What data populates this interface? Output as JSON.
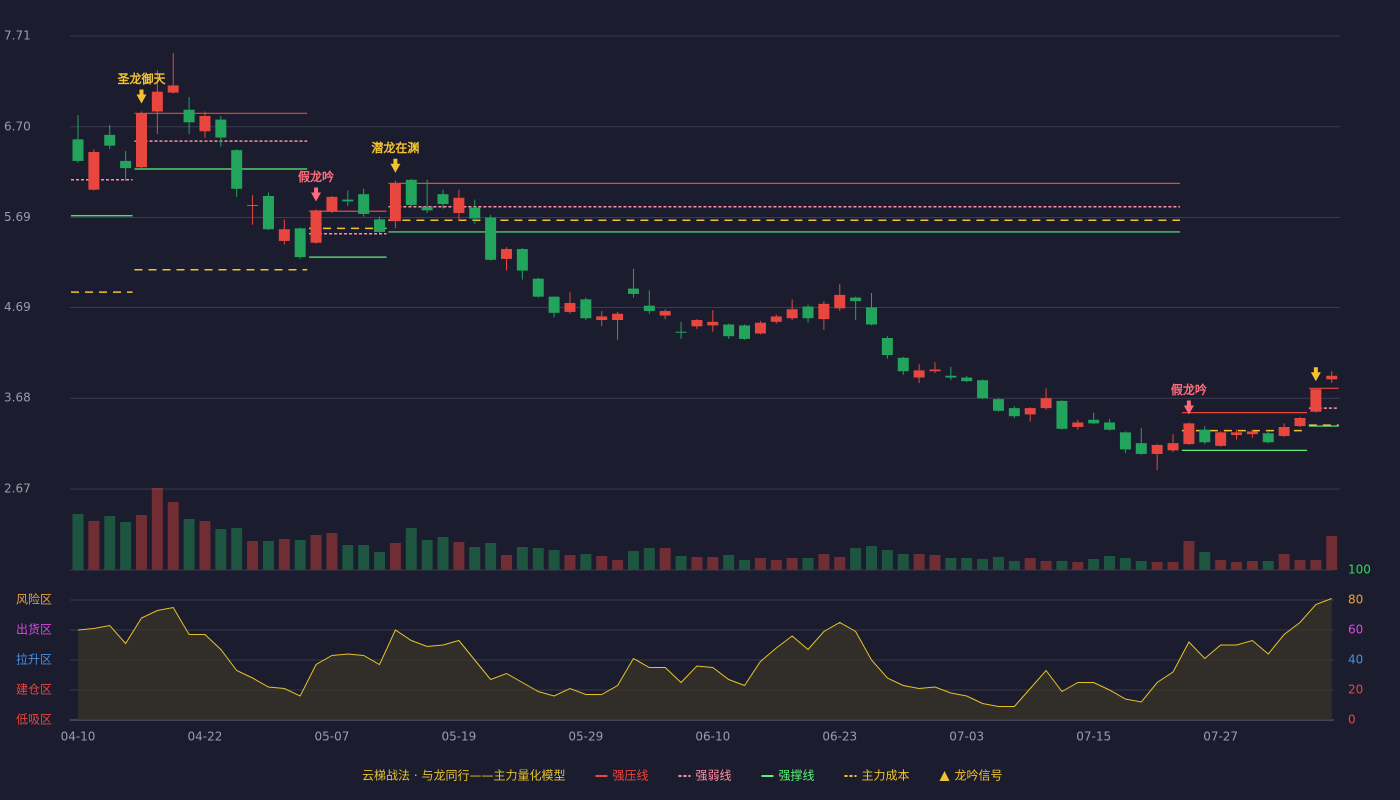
{
  "chart_data": {
    "type": "candlestick",
    "categories": [
      "04-10",
      null,
      null,
      null,
      null,
      null,
      null,
      null,
      "04-22",
      null,
      null,
      null,
      null,
      null,
      null,
      null,
      "05-07",
      null,
      null,
      null,
      null,
      null,
      null,
      null,
      "05-19",
      null,
      null,
      null,
      null,
      null,
      null,
      null,
      "05-29",
      null,
      null,
      null,
      null,
      null,
      null,
      null,
      "06-10",
      null,
      null,
      null,
      null,
      null,
      null,
      null,
      "06-23",
      null,
      null,
      null,
      null,
      null,
      null,
      null,
      "07-03",
      null,
      null,
      null,
      null,
      null,
      null,
      null,
      "07-15",
      null,
      null,
      null,
      null,
      null,
      null,
      null,
      "07-27",
      null,
      null,
      null,
      null,
      null,
      null,
      null
    ],
    "open": [
      6.56,
      6.0,
      6.61,
      6.32,
      6.25,
      6.87,
      7.08,
      6.89,
      6.65,
      6.78,
      6.44,
      5.82,
      5.93,
      5.43,
      5.57,
      5.41,
      5.76,
      5.89,
      5.95,
      5.67,
      5.65,
      6.11,
      5.81,
      5.95,
      5.74,
      5.8,
      5.69,
      5.23,
      5.34,
      5.01,
      4.81,
      4.64,
      4.78,
      4.55,
      4.55,
      4.9,
      4.71,
      4.6,
      4.42,
      4.48,
      4.49,
      4.5,
      4.49,
      4.4,
      4.53,
      4.57,
      4.7,
      4.56,
      4.68,
      4.8,
      4.69,
      4.35,
      4.13,
      3.91,
      3.98,
      3.93,
      3.91,
      3.88,
      3.67,
      3.57,
      3.5,
      3.57,
      3.65,
      3.36,
      3.44,
      3.41,
      3.3,
      3.18,
      3.06,
      3.1,
      3.17,
      3.33,
      3.15,
      3.27,
      3.28,
      3.29,
      3.26,
      3.37,
      3.53,
      3.89
    ],
    "close": [
      6.32,
      6.42,
      6.49,
      6.24,
      6.85,
      7.09,
      7.16,
      6.75,
      6.82,
      6.58,
      6.01,
      5.83,
      5.56,
      5.56,
      5.25,
      5.77,
      5.92,
      5.87,
      5.73,
      5.53,
      6.07,
      5.83,
      5.77,
      5.84,
      5.91,
      5.68,
      5.22,
      5.34,
      5.1,
      4.81,
      4.63,
      4.74,
      4.57,
      4.59,
      4.62,
      4.84,
      4.65,
      4.65,
      4.41,
      4.55,
      4.53,
      4.37,
      4.34,
      4.52,
      4.59,
      4.67,
      4.57,
      4.73,
      4.83,
      4.76,
      4.5,
      4.16,
      3.98,
      3.99,
      4.0,
      3.91,
      3.87,
      3.68,
      3.54,
      3.48,
      3.57,
      3.68,
      3.34,
      3.41,
      3.4,
      3.33,
      3.11,
      3.06,
      3.16,
      3.18,
      3.4,
      3.19,
      3.3,
      3.3,
      3.31,
      3.19,
      3.36,
      3.46,
      3.78,
      3.93
    ],
    "high": [
      6.83,
      6.45,
      6.72,
      6.43,
      6.87,
      7.33,
      7.52,
      7.03,
      6.87,
      6.82,
      6.45,
      5.94,
      5.97,
      5.67,
      5.58,
      5.78,
      5.93,
      5.99,
      6.01,
      5.7,
      6.1,
      6.12,
      6.11,
      6.0,
      6.0,
      5.89,
      5.72,
      5.36,
      5.35,
      5.02,
      4.81,
      4.86,
      4.8,
      4.65,
      4.64,
      5.12,
      4.88,
      4.67,
      4.53,
      4.56,
      4.66,
      4.51,
      4.5,
      4.54,
      4.61,
      4.78,
      4.72,
      4.76,
      4.95,
      4.81,
      4.85,
      4.37,
      4.14,
      4.06,
      4.08,
      4.03,
      3.93,
      3.89,
      3.68,
      3.59,
      3.58,
      3.79,
      3.66,
      3.44,
      3.52,
      3.45,
      3.31,
      3.35,
      3.17,
      3.28,
      3.41,
      3.37,
      3.31,
      3.33,
      3.33,
      3.32,
      3.4,
      3.47,
      3.78,
      3.98
    ],
    "low": [
      6.3,
      5.99,
      6.45,
      6.1,
      6.24,
      6.62,
      7.07,
      6.62,
      6.58,
      6.48,
      5.92,
      5.61,
      5.55,
      5.39,
      5.23,
      5.4,
      5.74,
      5.82,
      5.7,
      5.52,
      5.57,
      5.82,
      5.74,
      5.79,
      5.65,
      5.62,
      5.21,
      5.1,
      5.0,
      4.8,
      4.58,
      4.62,
      4.55,
      4.48,
      4.33,
      4.8,
      4.62,
      4.56,
      4.34,
      4.45,
      4.42,
      4.34,
      4.33,
      4.39,
      4.51,
      4.55,
      4.52,
      4.44,
      4.65,
      4.55,
      4.49,
      4.12,
      3.94,
      3.85,
      3.96,
      3.88,
      3.86,
      3.67,
      3.53,
      3.46,
      3.42,
      3.55,
      3.33,
      3.33,
      3.39,
      3.32,
      3.07,
      3.05,
      2.88,
      3.08,
      3.16,
      3.17,
      3.14,
      3.22,
      3.24,
      3.18,
      3.25,
      3.36,
      3.52,
      3.85
    ],
    "up_color": "#e8473f",
    "down_color": "#22a45d",
    "ylim": [
      2.67,
      7.71
    ],
    "yticks": [
      7.71,
      {
        "value": 6.7,
        "label": "6.70"
      },
      5.69,
      4.69,
      3.68,
      2.67
    ],
    "volume": [
      56,
      49,
      54,
      48,
      55,
      82,
      68,
      51,
      49,
      41,
      42,
      29,
      29,
      31,
      30,
      35,
      37,
      25,
      25,
      18,
      27,
      42,
      30,
      33,
      28,
      23,
      27,
      15,
      23,
      22,
      20,
      15,
      16,
      14,
      10,
      19,
      22,
      22,
      14,
      13,
      13,
      15,
      10,
      12,
      10,
      12,
      12,
      16,
      13,
      22,
      24,
      20,
      16,
      16,
      15,
      12,
      12,
      11,
      13,
      9,
      12,
      9,
      9,
      8,
      11,
      14,
      12,
      9,
      8,
      8,
      29,
      18,
      10,
      8,
      9,
      9,
      16,
      10,
      10,
      34
    ],
    "levels": [
      {
        "name": "强压线",
        "color": "#e8473f",
        "dashed": false,
        "segments": [
          {
            "value": 6.85,
            "from": 4,
            "to": 14
          },
          {
            "value": 5.76,
            "from": 15,
            "to": 19
          },
          {
            "value": 6.07,
            "from": 20,
            "to": 69
          },
          {
            "value": 3.52,
            "from": 70,
            "to": 77
          },
          {
            "value": 3.79,
            "from": 78,
            "to": 79
          }
        ]
      },
      {
        "name": "强弱线",
        "color": "#ff8fa3",
        "dashed": true,
        "segments": [
          {
            "value": 6.11,
            "from": 0,
            "to": 3
          },
          {
            "value": 6.54,
            "from": 4,
            "to": 14
          },
          {
            "value": 5.51,
            "from": 15,
            "to": 19
          },
          {
            "value": 5.81,
            "from": 20,
            "to": 69
          },
          {
            "value": 3.57,
            "from": 78,
            "to": 79
          }
        ]
      },
      {
        "name": "强撑线",
        "color": "#5cf07a",
        "dashed": false,
        "segments": [
          {
            "value": 5.71,
            "from": 0,
            "to": 3
          },
          {
            "value": 6.23,
            "from": 4,
            "to": 14
          },
          {
            "value": 5.25,
            "from": 15,
            "to": 19
          },
          {
            "value": 5.53,
            "from": 20,
            "to": 69
          },
          {
            "value": 3.1,
            "from": 70,
            "to": 77
          },
          {
            "value": 3.37,
            "from": 78,
            "to": 79
          }
        ]
      },
      {
        "name": "主力成本",
        "color": "#f2c230",
        "dashed": true,
        "segments": [
          {
            "value": 4.86,
            "from": 0,
            "to": 3
          },
          {
            "value": 5.11,
            "from": 4,
            "to": 14
          },
          {
            "value": 5.57,
            "from": 15,
            "to": 19
          },
          {
            "value": 5.66,
            "from": 20,
            "to": 69
          },
          {
            "value": 3.32,
            "from": 70,
            "to": 77
          },
          {
            "value": 3.38,
            "from": 78,
            "to": 79
          }
        ]
      }
    ],
    "signal_name": "龙吟信号",
    "signal_color": "#f2c230",
    "signals": [
      {
        "index": 4,
        "label": "圣龙御天",
        "color": "#f2c230"
      },
      {
        "index": 15,
        "label": "假龙吟",
        "color": "#ff6b7a"
      },
      {
        "index": 20,
        "label": "潜龙在渊",
        "color": "#f2c230"
      },
      {
        "index": 70,
        "label": "假龙吟",
        "color": "#ff6b7a"
      },
      {
        "index": 78,
        "color": "#f2c230"
      }
    ],
    "legend_title": "云梯战法 · 与龙同行——主力量化模型",
    "indicator": {
      "values": [
        60,
        61,
        63,
        51,
        68,
        73,
        75,
        57,
        57,
        47,
        33,
        28,
        22,
        21,
        16,
        37,
        43,
        44,
        43,
        37,
        60,
        53,
        49,
        50,
        53,
        40,
        27,
        31,
        25,
        19,
        16,
        21,
        17,
        17,
        23,
        41,
        35,
        35,
        25,
        36,
        35,
        27,
        23,
        39,
        48,
        56,
        47,
        59,
        65,
        59,
        40,
        28,
        23,
        21,
        22,
        18,
        16,
        11,
        9,
        9,
        21,
        33,
        19,
        25,
        25,
        20,
        14,
        12,
        25,
        32,
        52,
        41,
        50,
        50,
        53,
        44,
        57,
        65,
        77,
        81
      ],
      "color": "#e6c229",
      "ylim": [
        0,
        100
      ],
      "yticks": [
        0,
        20,
        40,
        60,
        80,
        100
      ],
      "ytick_colors": [
        "#e8473f",
        "#e8473f",
        "#4a8fe0",
        "#d94adf",
        "#e8a33d",
        "#2bdc5a"
      ],
      "zones": [
        {
          "label": "风险区",
          "value": 80,
          "color": "#e8a33d"
        },
        {
          "label": "出货区",
          "value": 60,
          "color": "#d94adf"
        },
        {
          "label": "拉升区",
          "value": 40,
          "color": "#4a8fe0"
        },
        {
          "label": "建仓区",
          "value": 20,
          "color": "#e8473f"
        },
        {
          "label": "低吸区",
          "value": 0,
          "color": "#e8473f"
        }
      ]
    }
  }
}
